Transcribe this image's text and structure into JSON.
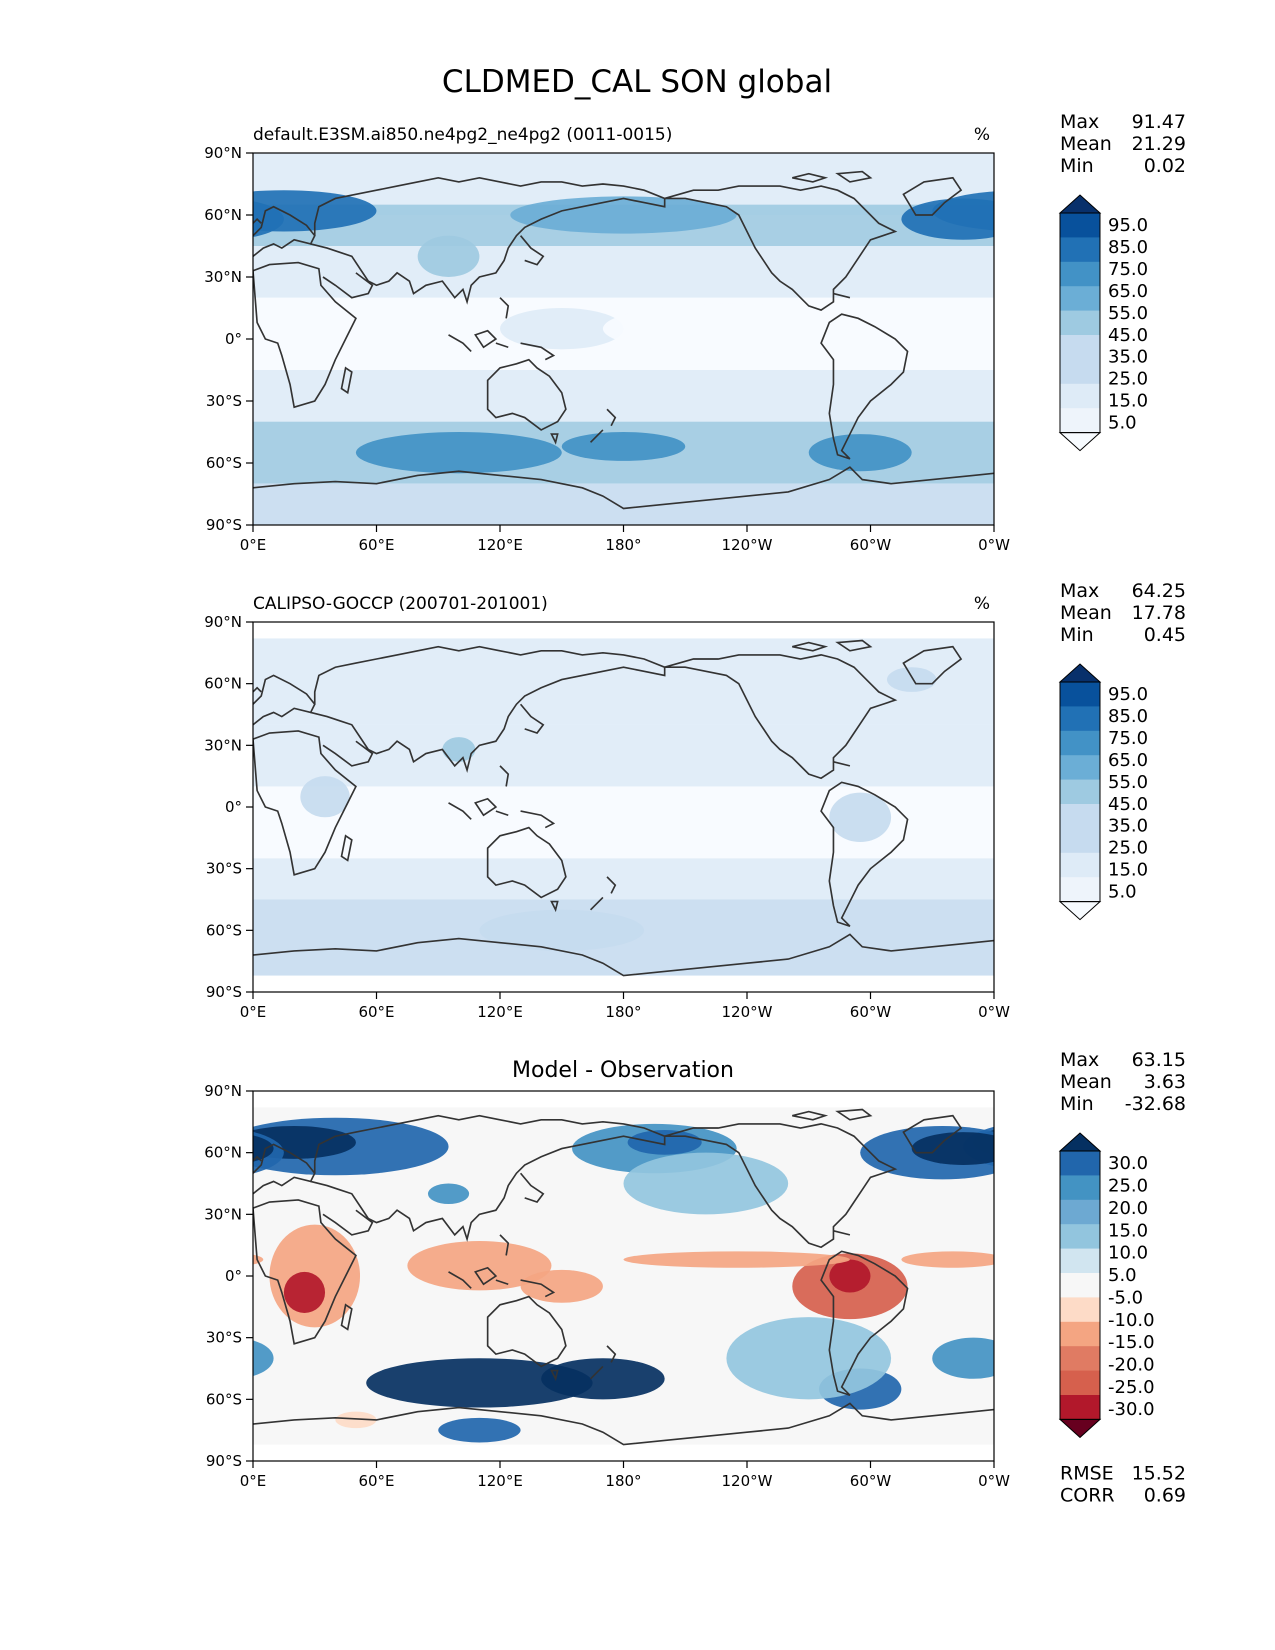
{
  "figure_title": "CLDMED_CAL SON global",
  "colors": {
    "blues": [
      "#f7fbff",
      "#deebf7",
      "#c6dbef",
      "#9ecae1",
      "#6baed6",
      "#4292c6",
      "#2171b5",
      "#08519c",
      "#08306b"
    ],
    "rdbu": [
      "#67001f",
      "#b2182b",
      "#d6604d",
      "#f4a582",
      "#fddbc7",
      "#f7f7f7",
      "#d1e5f0",
      "#92c5de",
      "#4393c3",
      "#2166ac",
      "#053061"
    ],
    "coast": "#333333"
  },
  "chart_data": [
    {
      "type": "heatmap",
      "id": "model",
      "title": "default.E3SM.ai850.ne4pg2_ne4pg2 (0011-0015)",
      "units": "%",
      "stats": [
        {
          "label": "Max",
          "value": "91.47"
        },
        {
          "label": "Mean",
          "value": "21.29"
        },
        {
          "label": "Min",
          "value": "0.02"
        }
      ],
      "colorbar_levels": [
        "95.0",
        "85.0",
        "75.0",
        "65.0",
        "55.0",
        "45.0",
        "35.0",
        "25.0",
        "15.0",
        "5.0"
      ],
      "colorbar_colors": [
        "#08306b",
        "#08519c",
        "#2171b5",
        "#4292c6",
        "#6baed6",
        "#9ecae1",
        "#c6dbef",
        "#c6dbef",
        "#deebf7",
        "#eef4fb",
        "#f7fbff"
      ],
      "y_ticks": [
        "90°N",
        "60°N",
        "30°N",
        "0°",
        "30°S",
        "60°S",
        "90°S"
      ],
      "x_ticks": [
        "0°E",
        "60°E",
        "120°E",
        "180°",
        "120°W",
        "60°W",
        "0°W"
      ],
      "xlim": [
        0,
        360
      ],
      "ylim": [
        -90,
        90
      ],
      "lat_bands": [
        {
          "lat": [
            60,
            90
          ],
          "level": 1
        },
        {
          "lat": [
            45,
            65
          ],
          "level": 3
        },
        {
          "lat": [
            20,
            45
          ],
          "level": 1
        },
        {
          "lat": [
            -15,
            20
          ],
          "level": 0
        },
        {
          "lat": [
            -40,
            -15
          ],
          "level": 1
        },
        {
          "lat": [
            -70,
            -40
          ],
          "level": 3
        },
        {
          "lat": [
            -90,
            -70
          ],
          "level": 2
        }
      ],
      "blobs": [
        {
          "lon": 15,
          "lat": 62,
          "dlon": 45,
          "dlat": 10,
          "level": 6
        },
        {
          "lon": 345,
          "lat": 58,
          "dlon": 30,
          "dlat": 10,
          "level": 6
        },
        {
          "lon": 180,
          "lat": 60,
          "dlon": 55,
          "dlat": 9,
          "level": 4
        },
        {
          "lon": 95,
          "lat": 40,
          "dlon": 15,
          "dlat": 10,
          "level": 3
        },
        {
          "lon": 100,
          "lat": -55,
          "dlon": 50,
          "dlat": 10,
          "level": 5
        },
        {
          "lon": 180,
          "lat": -52,
          "dlon": 30,
          "dlat": 7,
          "level": 5
        },
        {
          "lon": 295,
          "lat": -55,
          "dlon": 25,
          "dlat": 9,
          "level": 5
        },
        {
          "lon": 150,
          "lat": 5,
          "dlon": 30,
          "dlat": 10,
          "level": 1
        },
        {
          "lon": 230,
          "lat": 5,
          "dlon": 60,
          "dlat": 12,
          "level": 0
        }
      ]
    },
    {
      "type": "heatmap",
      "id": "obs",
      "title": "CALIPSO-GOCCP (200701-201001)",
      "units": "%",
      "stats": [
        {
          "label": "Max",
          "value": "64.25"
        },
        {
          "label": "Mean",
          "value": "17.78"
        },
        {
          "label": "Min",
          "value": "0.45"
        }
      ],
      "colorbar_levels": [
        "95.0",
        "85.0",
        "75.0",
        "65.0",
        "55.0",
        "45.0",
        "35.0",
        "25.0",
        "15.0",
        "5.0"
      ],
      "colorbar_colors": [
        "#08306b",
        "#08519c",
        "#2171b5",
        "#4292c6",
        "#6baed6",
        "#9ecae1",
        "#c6dbef",
        "#c6dbef",
        "#deebf7",
        "#eef4fb",
        "#f7fbff"
      ],
      "y_ticks": [
        "90°N",
        "60°N",
        "30°N",
        "0°",
        "30°S",
        "60°S",
        "90°S"
      ],
      "x_ticks": [
        "0°E",
        "60°E",
        "120°E",
        "180°",
        "120°W",
        "60°W",
        "0°W"
      ],
      "xlim": [
        0,
        360
      ],
      "ylim": [
        -90,
        90
      ],
      "data_lat_range": [
        -82,
        82
      ],
      "lat_bands": [
        {
          "lat": [
            40,
            82
          ],
          "level": 1
        },
        {
          "lat": [
            10,
            40
          ],
          "level": 1
        },
        {
          "lat": [
            -25,
            10
          ],
          "level": 0
        },
        {
          "lat": [
            -45,
            -25
          ],
          "level": 1
        },
        {
          "lat": [
            -82,
            -45
          ],
          "level": 2
        }
      ],
      "blobs": [
        {
          "lon": 100,
          "lat": 28,
          "dlon": 8,
          "dlat": 6,
          "level": 3
        },
        {
          "lon": 35,
          "lat": 5,
          "dlon": 12,
          "dlat": 10,
          "level": 2
        },
        {
          "lon": 295,
          "lat": -5,
          "dlon": 15,
          "dlat": 12,
          "level": 2
        },
        {
          "lon": 320,
          "lat": 62,
          "dlon": 12,
          "dlat": 6,
          "level": 2
        },
        {
          "lon": 150,
          "lat": -60,
          "dlon": 40,
          "dlat": 10,
          "level": 2
        }
      ]
    },
    {
      "type": "heatmap",
      "id": "diff",
      "title": "Model - Observation",
      "stats": [
        {
          "label": "Max",
          "value": "63.15"
        },
        {
          "label": "Mean",
          "value": "3.63"
        },
        {
          "label": "Min",
          "value": "-32.68"
        }
      ],
      "colorbar_levels": [
        "30.0",
        "25.0",
        "20.0",
        "15.0",
        "10.0",
        "5.0",
        "-5.0",
        "-10.0",
        "-15.0",
        "-20.0",
        "-25.0",
        "-30.0"
      ],
      "colorbar_colors": [
        "#053061",
        "#2166ac",
        "#4393c3",
        "#6da9d2",
        "#92c5de",
        "#d1e5f0",
        "#f7f7f7",
        "#fddbc7",
        "#f4a582",
        "#e07b63",
        "#d6604d",
        "#b2182b",
        "#67001f"
      ],
      "y_ticks": [
        "90°N",
        "60°N",
        "30°N",
        "0°",
        "30°S",
        "60°S",
        "90°S"
      ],
      "x_ticks": [
        "0°E",
        "60°E",
        "120°E",
        "180°",
        "120°W",
        "60°W",
        "0°W"
      ],
      "xlim": [
        0,
        360
      ],
      "ylim": [
        -90,
        90
      ],
      "data_lat_range": [
        -82,
        82
      ],
      "metrics": [
        {
          "label": "RMSE",
          "value": "15.52"
        },
        {
          "label": "CORR",
          "value": "0.69"
        }
      ],
      "blobs": [
        {
          "lon": 40,
          "lat": 63,
          "dlon": 55,
          "dlat": 14,
          "level": 9
        },
        {
          "lon": 20,
          "lat": 65,
          "dlon": 30,
          "dlat": 8,
          "level": 10
        },
        {
          "lon": 335,
          "lat": 60,
          "dlon": 40,
          "dlat": 13,
          "level": 9
        },
        {
          "lon": 345,
          "lat": 62,
          "dlon": 25,
          "dlat": 8,
          "level": 10
        },
        {
          "lon": 195,
          "lat": 62,
          "dlon": 40,
          "dlat": 12,
          "level": 8
        },
        {
          "lon": 200,
          "lat": 65,
          "dlon": 18,
          "dlat": 6,
          "level": 9
        },
        {
          "lon": 95,
          "lat": 40,
          "dlon": 10,
          "dlat": 5,
          "level": 8
        },
        {
          "lon": 30,
          "lat": 0,
          "dlon": 22,
          "dlat": 25,
          "level": 3
        },
        {
          "lon": 25,
          "lat": -8,
          "dlon": 10,
          "dlat": 10,
          "level": 1
        },
        {
          "lon": 110,
          "lat": 5,
          "dlon": 35,
          "dlat": 12,
          "level": 3
        },
        {
          "lon": 150,
          "lat": -5,
          "dlon": 20,
          "dlat": 8,
          "level": 3
        },
        {
          "lon": 290,
          "lat": -5,
          "dlon": 28,
          "dlat": 16,
          "level": 2
        },
        {
          "lon": 290,
          "lat": 0,
          "dlon": 10,
          "dlat": 8,
          "level": 1
        },
        {
          "lon": 235,
          "lat": 8,
          "dlon": 55,
          "dlat": 4,
          "level": 3
        },
        {
          "lon": 340,
          "lat": 8,
          "dlon": 25,
          "dlat": 4,
          "level": 3
        },
        {
          "lon": 110,
          "lat": -52,
          "dlon": 55,
          "dlat": 12,
          "level": 10
        },
        {
          "lon": 170,
          "lat": -50,
          "dlon": 30,
          "dlat": 10,
          "level": 10
        },
        {
          "lon": 295,
          "lat": -55,
          "dlon": 20,
          "dlat": 10,
          "level": 9
        },
        {
          "lon": 110,
          "lat": -75,
          "dlon": 20,
          "dlat": 6,
          "level": 9
        },
        {
          "lon": 270,
          "lat": -40,
          "dlon": 40,
          "dlat": 20,
          "level": 7
        },
        {
          "lon": 350,
          "lat": -40,
          "dlon": 20,
          "dlat": 10,
          "level": 8
        },
        {
          "lon": 220,
          "lat": 45,
          "dlon": 40,
          "dlat": 15,
          "level": 7
        },
        {
          "lon": 50,
          "lat": -70,
          "dlon": 10,
          "dlat": 4,
          "level": 4
        }
      ]
    }
  ]
}
